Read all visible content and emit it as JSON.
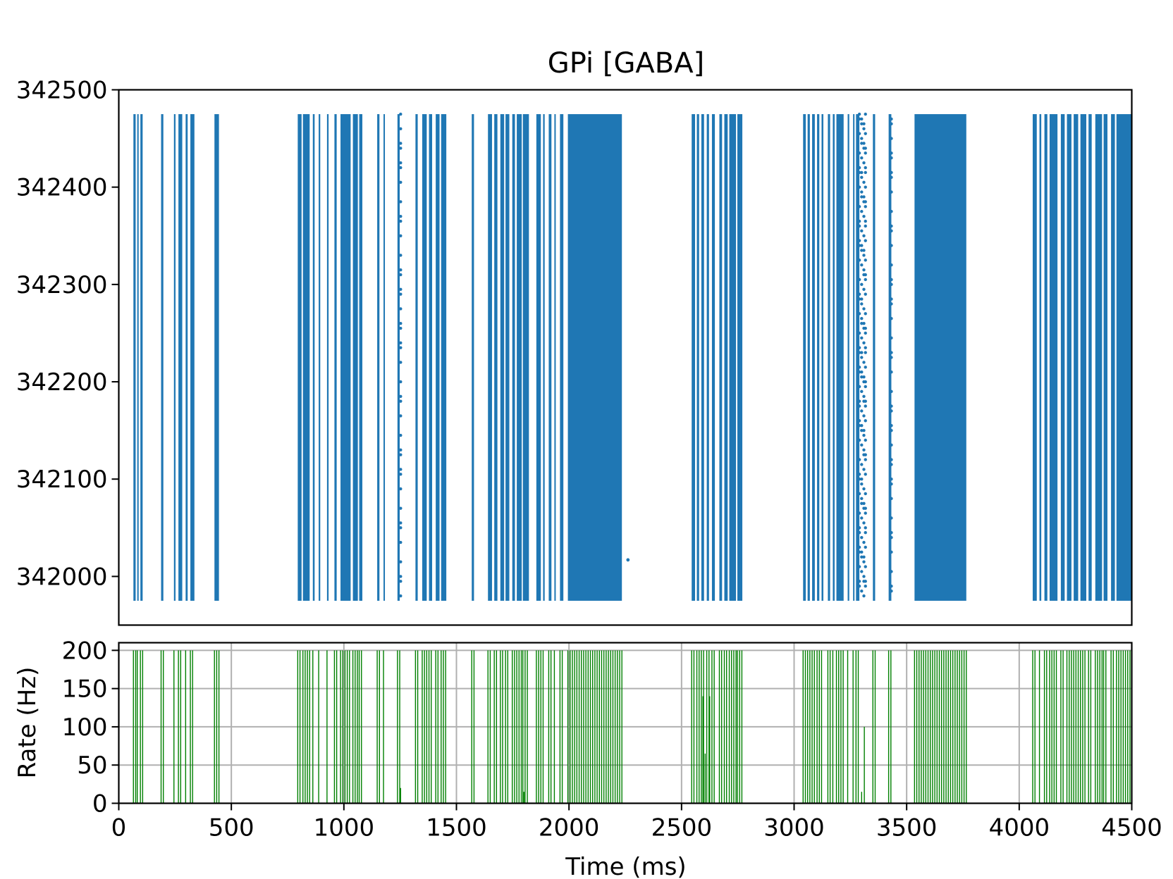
{
  "chart_data": [
    {
      "type": "scatter",
      "title": "GPi [GABA]",
      "xlabel": "",
      "ylabel": "",
      "xlim": [
        0,
        4500
      ],
      "ylim": [
        341950,
        342500
      ],
      "yticks": [
        342000,
        342100,
        342200,
        342300,
        342400,
        342500
      ],
      "series_color": "#1f77b4",
      "neuron_range": [
        341975,
        342475
      ],
      "spike_bands_ms": [
        [
          65,
          75
        ],
        [
          82,
          88
        ],
        [
          96,
          106
        ],
        [
          188,
          198
        ],
        [
          245,
          252
        ],
        [
          265,
          282
        ],
        [
          297,
          306
        ],
        [
          318,
          336
        ],
        [
          425,
          445
        ],
        [
          795,
          812
        ],
        [
          818,
          848
        ],
        [
          862,
          870
        ],
        [
          888,
          895
        ],
        [
          925,
          932
        ],
        [
          958,
          968
        ],
        [
          985,
          1030
        ],
        [
          1040,
          1062
        ],
        [
          1068,
          1082
        ],
        [
          1148,
          1158
        ],
        [
          1176,
          1182
        ],
        [
          1238,
          1248
        ],
        [
          1318,
          1328
        ],
        [
          1348,
          1368
        ],
        [
          1378,
          1392
        ],
        [
          1408,
          1425
        ],
        [
          1432,
          1455
        ],
        [
          1568,
          1578
        ],
        [
          1640,
          1658
        ],
        [
          1668,
          1682
        ],
        [
          1695,
          1712
        ],
        [
          1718,
          1735
        ],
        [
          1748,
          1760
        ],
        [
          1768,
          1790
        ],
        [
          1795,
          1822
        ],
        [
          1855,
          1875
        ],
        [
          1885,
          1892
        ],
        [
          1910,
          1922
        ],
        [
          1935,
          1940
        ],
        [
          1960,
          1975
        ],
        [
          1995,
          2235
        ],
        [
          2545,
          2560
        ],
        [
          2568,
          2578
        ],
        [
          2588,
          2600
        ],
        [
          2612,
          2622
        ],
        [
          2635,
          2648
        ],
        [
          2668,
          2680
        ],
        [
          2690,
          2705
        ],
        [
          2712,
          2742
        ],
        [
          2748,
          2770
        ],
        [
          3040,
          3052
        ],
        [
          3060,
          3070
        ],
        [
          3080,
          3092
        ],
        [
          3102,
          3112
        ],
        [
          3122,
          3130
        ],
        [
          3150,
          3160
        ],
        [
          3172,
          3180
        ],
        [
          3188,
          3220
        ],
        [
          3238,
          3245
        ],
        [
          3262,
          3268
        ],
        [
          3275,
          3290
        ],
        [
          3350,
          3360
        ],
        [
          3420,
          3432
        ],
        [
          3535,
          3765
        ],
        [
          4060,
          4078
        ],
        [
          4090,
          4098
        ],
        [
          4112,
          4125
        ],
        [
          4135,
          4170
        ],
        [
          4185,
          4202
        ],
        [
          4212,
          4232
        ],
        [
          4242,
          4262
        ],
        [
          4272,
          4298
        ],
        [
          4308,
          4322
        ],
        [
          4338,
          4368
        ],
        [
          4375,
          4392
        ],
        [
          4408,
          4425
        ],
        [
          4432,
          4500
        ]
      ],
      "sparse_columns_ms": [
        1252,
        3290,
        3300,
        3310,
        3317,
        3432
      ],
      "isolated_points": [
        {
          "x": 2262,
          "y": 342017
        }
      ]
    },
    {
      "type": "bar",
      "title": "",
      "xlabel": "Time (ms)",
      "ylabel": "Rate (Hz)",
      "xlim": [
        0,
        4500
      ],
      "ylim": [
        0,
        210
      ],
      "xticks": [
        0,
        500,
        1000,
        1500,
        2000,
        2500,
        3000,
        3500,
        4000,
        4500
      ],
      "yticks": [
        0,
        50,
        100,
        150,
        200
      ],
      "grid": true,
      "series_color": "#008000",
      "peak_rate": 200,
      "low_rate_bins": [
        {
          "x": 1252,
          "y": 20
        },
        {
          "x": 1800,
          "y": 15
        },
        {
          "x": 2595,
          "y": 140
        },
        {
          "x": 2605,
          "y": 65
        },
        {
          "x": 2625,
          "y": 140
        },
        {
          "x": 3300,
          "y": 15
        },
        {
          "x": 3312,
          "y": 100
        }
      ]
    }
  ]
}
